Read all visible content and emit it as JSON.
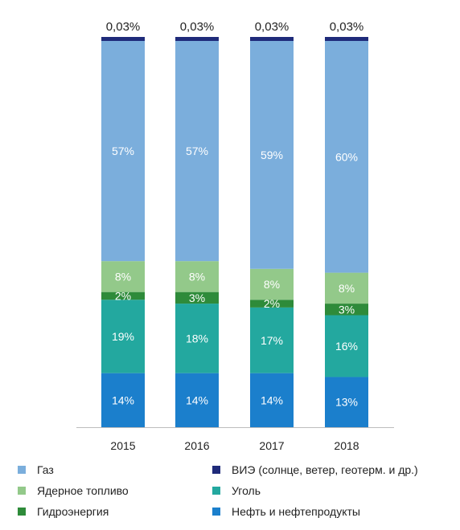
{
  "chart_data": {
    "type": "bar",
    "stacked": true,
    "categories": [
      "2015",
      "2016",
      "2017",
      "2018"
    ],
    "series": [
      {
        "name": "Нефть и нефтепродукты",
        "color": "#1b7fcc",
        "values": [
          14,
          14,
          14,
          13
        ],
        "labels": [
          "14%",
          "14%",
          "14%",
          "13%"
        ]
      },
      {
        "name": "Уголь",
        "color": "#23a89f",
        "values": [
          19,
          18,
          17,
          16
        ],
        "labels": [
          "19%",
          "18%",
          "17%",
          "16%"
        ]
      },
      {
        "name": "Гидроэнергия",
        "color": "#2e8b3a",
        "values": [
          2,
          3,
          2,
          3
        ],
        "labels": [
          "2%",
          "3%",
          "2%",
          "3%"
        ]
      },
      {
        "name": "Ядерное топливо",
        "color": "#93c98a",
        "values": [
          8,
          8,
          8,
          8
        ],
        "labels": [
          "8%",
          "8%",
          "8%",
          "8%"
        ]
      },
      {
        "name": "Газ",
        "color": "#7baedc",
        "values": [
          57,
          57,
          59,
          60
        ],
        "labels": [
          "57%",
          "57%",
          "59%",
          "60%"
        ]
      },
      {
        "name": "ВИЭ (солнце, ветер, геотерм. и др.)",
        "color": "#1f2b7a",
        "values": [
          0.03,
          0.03,
          0.03,
          0.03
        ],
        "labels": [
          "0,03%",
          "0,03%",
          "0,03%",
          "0,03%"
        ]
      }
    ],
    "legend_order": [
      "Газ",
      "ВИЭ (солнце, ветер, геотерм. и др.)",
      "Ядерное топливо",
      "Уголь",
      "Гидроэнергия",
      "Нефть и нефтепродукты"
    ],
    "legend_position": "bottom",
    "grid": false
  }
}
